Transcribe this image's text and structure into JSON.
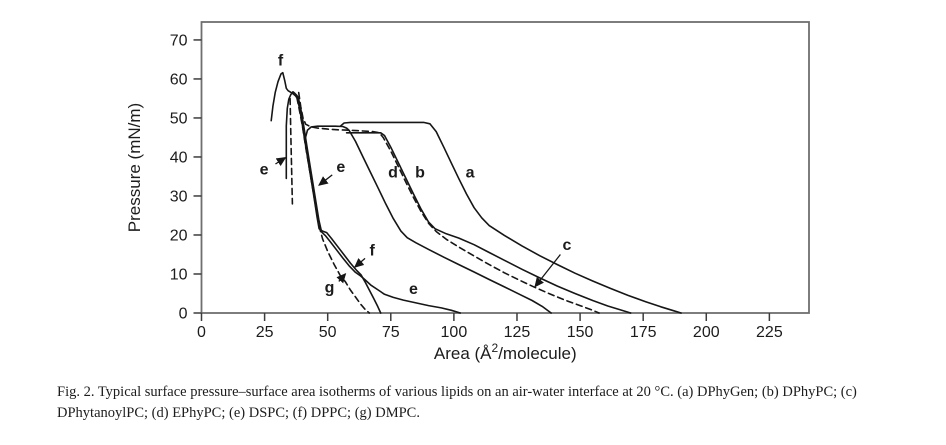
{
  "figure": {
    "caption_line1": "Fig. 2. Typical surface pressure–surface area isotherms of various lipids on an air-water interface at 20 °C. (a) DPhyGen; (b) DPhyPC; (c)",
    "caption_line2": "DPhytanoylPC; (d) EPhyPC; (e) DSPC; (f) DPPC; (g) DMPC."
  },
  "colors": {
    "background": "#ffffff",
    "curve": "#161616",
    "frame": "#6f6f6f",
    "tick": "#3c3c3c",
    "text": "#1c1c1c"
  },
  "chart_data": {
    "type": "line",
    "title": "",
    "xlabel": "Area (Å²/molecule)",
    "ylabel": "Pressure (mN/m)",
    "xlim": [
      0,
      240.7
    ],
    "ylim": [
      0,
      74.6
    ],
    "x_ticks": [
      0,
      25,
      50,
      75,
      100,
      125,
      150,
      175,
      200,
      225
    ],
    "y_ticks": [
      0,
      10,
      20,
      30,
      40,
      50,
      60,
      70
    ],
    "grid": false,
    "legend_position": "none (curves labeled a–g directly on plot)",
    "series": [
      {
        "id": "a",
        "name": "a — DPhyGen",
        "dash": false,
        "points": [
          [
            55,
            47.9
          ],
          [
            56.5,
            48.7
          ],
          [
            59,
            48.85
          ],
          [
            88,
            48.85
          ],
          [
            90.5,
            48.5
          ],
          [
            93,
            46.5
          ],
          [
            96,
            42.5
          ],
          [
            99,
            38.4
          ],
          [
            102,
            34.4
          ],
          [
            105,
            30.5
          ],
          [
            108,
            27
          ],
          [
            111,
            24.4
          ],
          [
            114,
            22.4
          ],
          [
            120,
            19.9
          ],
          [
            127,
            17.2
          ],
          [
            134,
            14.7
          ],
          [
            141,
            12.4
          ],
          [
            148,
            10.2
          ],
          [
            155,
            8.2
          ],
          [
            162,
            6.3
          ],
          [
            169,
            4.5
          ],
          [
            176,
            2.9
          ],
          [
            182,
            1.6
          ],
          [
            187,
            0.6
          ],
          [
            190,
            0
          ]
        ]
      },
      {
        "id": "b",
        "name": "b — DPhyPC",
        "dash": false,
        "points": [
          [
            57.5,
            46.2
          ],
          [
            71,
            46.2
          ],
          [
            72.5,
            45.5
          ],
          [
            75,
            42.5
          ],
          [
            78,
            38.5
          ],
          [
            81,
            34.5
          ],
          [
            84,
            30.5
          ],
          [
            87,
            26.6
          ],
          [
            90,
            23.3
          ],
          [
            92.5,
            21.6
          ],
          [
            97,
            20.3
          ],
          [
            102,
            19.2
          ],
          [
            108,
            17.5
          ],
          [
            114,
            15.5
          ],
          [
            120,
            13.5
          ],
          [
            127,
            11.2
          ],
          [
            134,
            9
          ],
          [
            141,
            6.9
          ],
          [
            148,
            5
          ],
          [
            155,
            3.2
          ],
          [
            161,
            1.8
          ],
          [
            166,
            0.8
          ],
          [
            170,
            0
          ]
        ]
      },
      {
        "id": "c",
        "name": "c — DPhytanoylPC",
        "dash": true,
        "points": [
          [
            38.5,
            56.5
          ],
          [
            39.3,
            53
          ],
          [
            40.2,
            50
          ],
          [
            41.3,
            48.4
          ],
          [
            43,
            47.8
          ],
          [
            46,
            47.4
          ],
          [
            50,
            47.15
          ],
          [
            55,
            46.95
          ],
          [
            60,
            46.8
          ],
          [
            64,
            46.65
          ],
          [
            68,
            46.5
          ],
          [
            70.5,
            46.2
          ],
          [
            72,
            45
          ],
          [
            75,
            41.5
          ],
          [
            78,
            37.5
          ],
          [
            81,
            33.5
          ],
          [
            84,
            29.6
          ],
          [
            87,
            26
          ],
          [
            90,
            23
          ],
          [
            93,
            20.9
          ],
          [
            97,
            18.9
          ],
          [
            102,
            16.9
          ],
          [
            108,
            14.6
          ],
          [
            114,
            12.4
          ],
          [
            120,
            10.3
          ],
          [
            126,
            8.4
          ],
          [
            132,
            6.6
          ],
          [
            138,
            4.9
          ],
          [
            144,
            3.3
          ],
          [
            150,
            1.9
          ],
          [
            155,
            0.7
          ],
          [
            157.5,
            0
          ]
        ]
      },
      {
        "id": "d",
        "name": "d — EPhyPC",
        "dash": false,
        "points": [
          [
            41,
            44.5
          ],
          [
            42,
            46.9
          ],
          [
            43.5,
            47.7
          ],
          [
            46,
            47.9
          ],
          [
            53,
            47.9
          ],
          [
            56,
            47.8
          ],
          [
            57.5,
            47.4
          ],
          [
            58.5,
            46.8
          ],
          [
            61,
            44
          ],
          [
            64,
            40
          ],
          [
            67,
            36
          ],
          [
            70,
            32
          ],
          [
            73,
            28
          ],
          [
            76,
            24.2
          ],
          [
            79,
            21
          ],
          [
            81.5,
            19.3
          ],
          [
            85,
            18
          ],
          [
            90,
            16.3
          ],
          [
            96,
            14.3
          ],
          [
            102,
            12.4
          ],
          [
            108,
            10.5
          ],
          [
            114,
            8.6
          ],
          [
            120,
            6.7
          ],
          [
            126,
            4.8
          ],
          [
            131,
            3.2
          ],
          [
            135,
            1.7
          ],
          [
            138.5,
            0
          ]
        ]
      },
      {
        "id": "e",
        "name": "e — DSPC",
        "dash": false,
        "points": [
          [
            33.6,
            34.5
          ],
          [
            33.6,
            48
          ],
          [
            34,
            52.5
          ],
          [
            34.6,
            54.8
          ],
          [
            35.4,
            56
          ],
          [
            36.2,
            56.7
          ],
          [
            37,
            56.3
          ],
          [
            37.6,
            55.9
          ],
          [
            38.3,
            55.3
          ],
          [
            39.3,
            52.5
          ],
          [
            40.5,
            48
          ],
          [
            42,
            41.8
          ],
          [
            43.5,
            35.8
          ],
          [
            45,
            29.8
          ],
          [
            46.5,
            23.8
          ],
          [
            47.6,
            20.8
          ],
          [
            49,
            19.9
          ],
          [
            51,
            18.3
          ],
          [
            53.5,
            16.2
          ],
          [
            56,
            14.1
          ],
          [
            58.5,
            12.1
          ],
          [
            61,
            10.4
          ],
          [
            63,
            9.5
          ],
          [
            64.5,
            8.7
          ],
          [
            67,
            7.2
          ],
          [
            70,
            5.9
          ],
          [
            72.5,
            4.8
          ],
          [
            76,
            4
          ],
          [
            80,
            3.3
          ],
          [
            85,
            2.6
          ],
          [
            90,
            1.9
          ],
          [
            95,
            1.3
          ],
          [
            99,
            0.7
          ],
          [
            102.5,
            0
          ]
        ]
      },
      {
        "id": "f",
        "name": "f — DPPC",
        "dash": false,
        "points": [
          [
            27.6,
            49.3
          ],
          [
            28.3,
            53
          ],
          [
            29.2,
            56.5
          ],
          [
            30.3,
            59.3
          ],
          [
            31.5,
            61.3
          ],
          [
            32.2,
            61.6
          ],
          [
            33,
            59.5
          ],
          [
            33.6,
            57.6
          ],
          [
            34.3,
            57
          ],
          [
            35.3,
            56.6
          ],
          [
            36.3,
            56.2
          ],
          [
            37.2,
            55.7
          ],
          [
            38,
            55
          ],
          [
            39,
            52
          ],
          [
            40,
            48
          ],
          [
            41.5,
            42
          ],
          [
            43,
            36
          ],
          [
            44.5,
            30
          ],
          [
            45.8,
            24.5
          ],
          [
            46.6,
            21.6
          ],
          [
            48,
            21
          ],
          [
            49.6,
            20.6
          ],
          [
            51.5,
            19.1
          ],
          [
            54,
            17
          ],
          [
            56.5,
            14.9
          ],
          [
            59,
            12.8
          ],
          [
            61.5,
            10.9
          ],
          [
            63.2,
            9.8
          ],
          [
            64.8,
            8
          ],
          [
            66.5,
            5.9
          ],
          [
            68.2,
            3.8
          ],
          [
            69.8,
            1.7
          ],
          [
            71,
            0
          ]
        ]
      },
      {
        "id": "g-collapse",
        "name": "g — DMPC (collapse segment)",
        "dash": true,
        "points": [
          [
            35.1,
            55
          ],
          [
            35.4,
            46
          ],
          [
            35.7,
            37
          ],
          [
            36,
            28
          ]
        ]
      },
      {
        "id": "g",
        "name": "g — DMPC",
        "dash": true,
        "points": [
          [
            37.8,
            55.2
          ],
          [
            38.8,
            52
          ],
          [
            40,
            47.8
          ],
          [
            41.3,
            42.5
          ],
          [
            42.8,
            36.8
          ],
          [
            44.3,
            31
          ],
          [
            45.8,
            25.2
          ],
          [
            46.8,
            21.8
          ],
          [
            48,
            19
          ],
          [
            50,
            15.8
          ],
          [
            52.5,
            12.5
          ],
          [
            55,
            9.6
          ],
          [
            57,
            8
          ],
          [
            59,
            5.9
          ],
          [
            61,
            4.1
          ],
          [
            63,
            2.3
          ],
          [
            65,
            0.8
          ],
          [
            66.5,
            0
          ]
        ]
      }
    ],
    "annotations": [
      {
        "id": "f-top",
        "text": "f",
        "x": 31.3,
        "y": 64.9
      },
      {
        "id": "e-left",
        "text": "e",
        "x": 24.8,
        "y": 36.9,
        "arrow_from": [
          29.3,
          38.2
        ],
        "arrow_to": [
          33.2,
          39.8
        ]
      },
      {
        "id": "e-upper",
        "text": "e",
        "x": 55.2,
        "y": 37.6,
        "arrow_from": [
          51.8,
          35.4
        ],
        "arrow_to": [
          46.6,
          32.8
        ]
      },
      {
        "id": "d",
        "text": "d",
        "x": 75.9,
        "y": 36.2
      },
      {
        "id": "b",
        "text": "b",
        "x": 86.6,
        "y": 36.2
      },
      {
        "id": "a",
        "text": "a",
        "x": 106.4,
        "y": 36.2
      },
      {
        "id": "c",
        "text": "c",
        "x": 144.8,
        "y": 17.6,
        "arrow_from": [
          142.2,
          15.0
        ],
        "arrow_to": [
          132.2,
          6.8
        ]
      },
      {
        "id": "f-mid",
        "text": "f",
        "x": 67.6,
        "y": 16.2,
        "arrow_from": [
          64.8,
          14.0
        ],
        "arrow_to": [
          60.8,
          11.8
        ]
      },
      {
        "id": "g",
        "text": "g",
        "x": 50.7,
        "y": 6.7,
        "arrow_from": [
          54.4,
          8.1
        ],
        "arrow_to": [
          57.0,
          10.0
        ]
      },
      {
        "id": "e-lower",
        "text": "e",
        "x": 84.0,
        "y": 6.3
      }
    ]
  }
}
